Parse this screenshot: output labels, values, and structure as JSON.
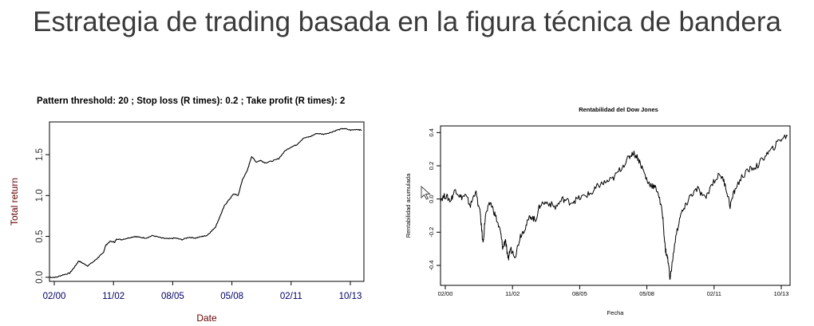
{
  "slide": {
    "title": "Estrategia de trading basada en la figura técnica de bandera"
  },
  "chart_data": [
    {
      "type": "line",
      "title": "Pattern threshold:  20 ;  Stop loss (R times):  0.2 ; Take profit (R times):  2",
      "xlabel": "Date",
      "ylabel": "Total return",
      "x_tick_labels": [
        "02/00",
        "11/02",
        "08/05",
        "05/08",
        "02/11",
        "10/13"
      ],
      "y_ticks": [
        0.0,
        0.5,
        1.0,
        1.5
      ],
      "y_tick_labels": [
        "0.0",
        "0.5",
        "1.0",
        "1.5"
      ],
      "ylim": [
        -0.05,
        1.9
      ],
      "xlim": [
        2000.0,
        2014.0
      ],
      "grid": false,
      "line_color": "#000000",
      "series": [
        {
          "x": [
            2000.0,
            2000.3,
            2000.6,
            2000.9,
            2001.1,
            2001.3,
            2001.5,
            2001.7,
            2002.0,
            2002.2,
            2002.4,
            2002.5,
            2002.7,
            2002.9,
            2003.0,
            2003.2,
            2003.5,
            2003.8,
            2004.0,
            2004.3,
            2004.6,
            2005.0,
            2005.3,
            2005.6,
            2005.9,
            2006.2,
            2006.5,
            2006.8,
            2007.0,
            2007.2,
            2007.4,
            2007.6,
            2007.8,
            2008.0,
            2008.2,
            2008.4,
            2008.6,
            2008.8,
            2009.0,
            2009.2,
            2009.4,
            2009.6,
            2009.9,
            2010.2,
            2010.5,
            2010.8,
            2011.0,
            2011.3,
            2011.6,
            2011.9,
            2012.2,
            2012.5,
            2012.8,
            2013.1,
            2013.4,
            2013.7,
            2013.9
          ],
          "y": [
            0.0,
            0.0,
            0.03,
            0.05,
            0.12,
            0.2,
            0.17,
            0.14,
            0.2,
            0.25,
            0.3,
            0.39,
            0.44,
            0.43,
            0.47,
            0.46,
            0.48,
            0.5,
            0.49,
            0.48,
            0.51,
            0.48,
            0.47,
            0.48,
            0.46,
            0.49,
            0.48,
            0.5,
            0.51,
            0.56,
            0.62,
            0.75,
            0.88,
            0.95,
            1.02,
            1.0,
            1.2,
            1.3,
            1.48,
            1.41,
            1.43,
            1.4,
            1.42,
            1.45,
            1.55,
            1.6,
            1.62,
            1.7,
            1.72,
            1.76,
            1.75,
            1.77,
            1.8,
            1.82,
            1.8,
            1.81,
            1.8
          ]
        }
      ]
    },
    {
      "type": "line",
      "title": "Rentabilidad del Dow Jones",
      "xlabel": "Fecha",
      "ylabel": "Rentabilidad acumulada",
      "x_tick_labels": [
        "02/00",
        "11/02",
        "08/05",
        "05/08",
        "02/11",
        "10/13"
      ],
      "y_ticks": [
        -0.4,
        -0.2,
        0.0,
        0.2,
        0.4
      ],
      "y_tick_labels": [
        "-0.4",
        "-0.2",
        "0.0",
        "0.2",
        "0.4"
      ],
      "ylim": [
        -0.52,
        0.44
      ],
      "xlim": [
        2000.0,
        2014.0
      ],
      "grid": false,
      "line_color": "#000000",
      "series": [
        {
          "x": [
            2000.0,
            2000.2,
            2000.4,
            2000.6,
            2000.8,
            2001.0,
            2001.2,
            2001.4,
            2001.6,
            2001.7,
            2001.8,
            2002.0,
            2002.2,
            2002.4,
            2002.5,
            2002.6,
            2002.7,
            2002.8,
            2003.0,
            2003.2,
            2003.4,
            2003.6,
            2003.8,
            2004.0,
            2004.3,
            2004.6,
            2004.9,
            2005.2,
            2005.5,
            2005.8,
            2006.1,
            2006.3,
            2006.6,
            2006.9,
            2007.2,
            2007.5,
            2007.7,
            2007.9,
            2008.1,
            2008.3,
            2008.5,
            2008.7,
            2008.9,
            2009.0,
            2009.1,
            2009.2,
            2009.4,
            2009.6,
            2009.8,
            2010.0,
            2010.3,
            2010.6,
            2010.9,
            2011.2,
            2011.4,
            2011.6,
            2011.8,
            2012.1,
            2012.4,
            2012.7,
            2013.0,
            2013.3,
            2013.6,
            2013.9
          ],
          "y": [
            0.0,
            0.02,
            -0.01,
            0.06,
            0.01,
            0.02,
            -0.04,
            0.05,
            -0.1,
            -0.27,
            -0.1,
            -0.02,
            -0.1,
            -0.2,
            -0.3,
            -0.24,
            -0.37,
            -0.3,
            -0.34,
            -0.22,
            -0.17,
            -0.1,
            -0.13,
            -0.03,
            -0.02,
            -0.05,
            0.0,
            -0.02,
            0.0,
            0.02,
            0.04,
            0.08,
            0.1,
            0.12,
            0.18,
            0.24,
            0.28,
            0.25,
            0.18,
            0.1,
            0.08,
            0.05,
            -0.1,
            -0.3,
            -0.36,
            -0.48,
            -0.25,
            -0.1,
            -0.05,
            0.02,
            0.06,
            0.0,
            0.1,
            0.15,
            0.09,
            -0.04,
            0.06,
            0.14,
            0.18,
            0.2,
            0.26,
            0.3,
            0.36,
            0.38
          ]
        }
      ]
    }
  ]
}
